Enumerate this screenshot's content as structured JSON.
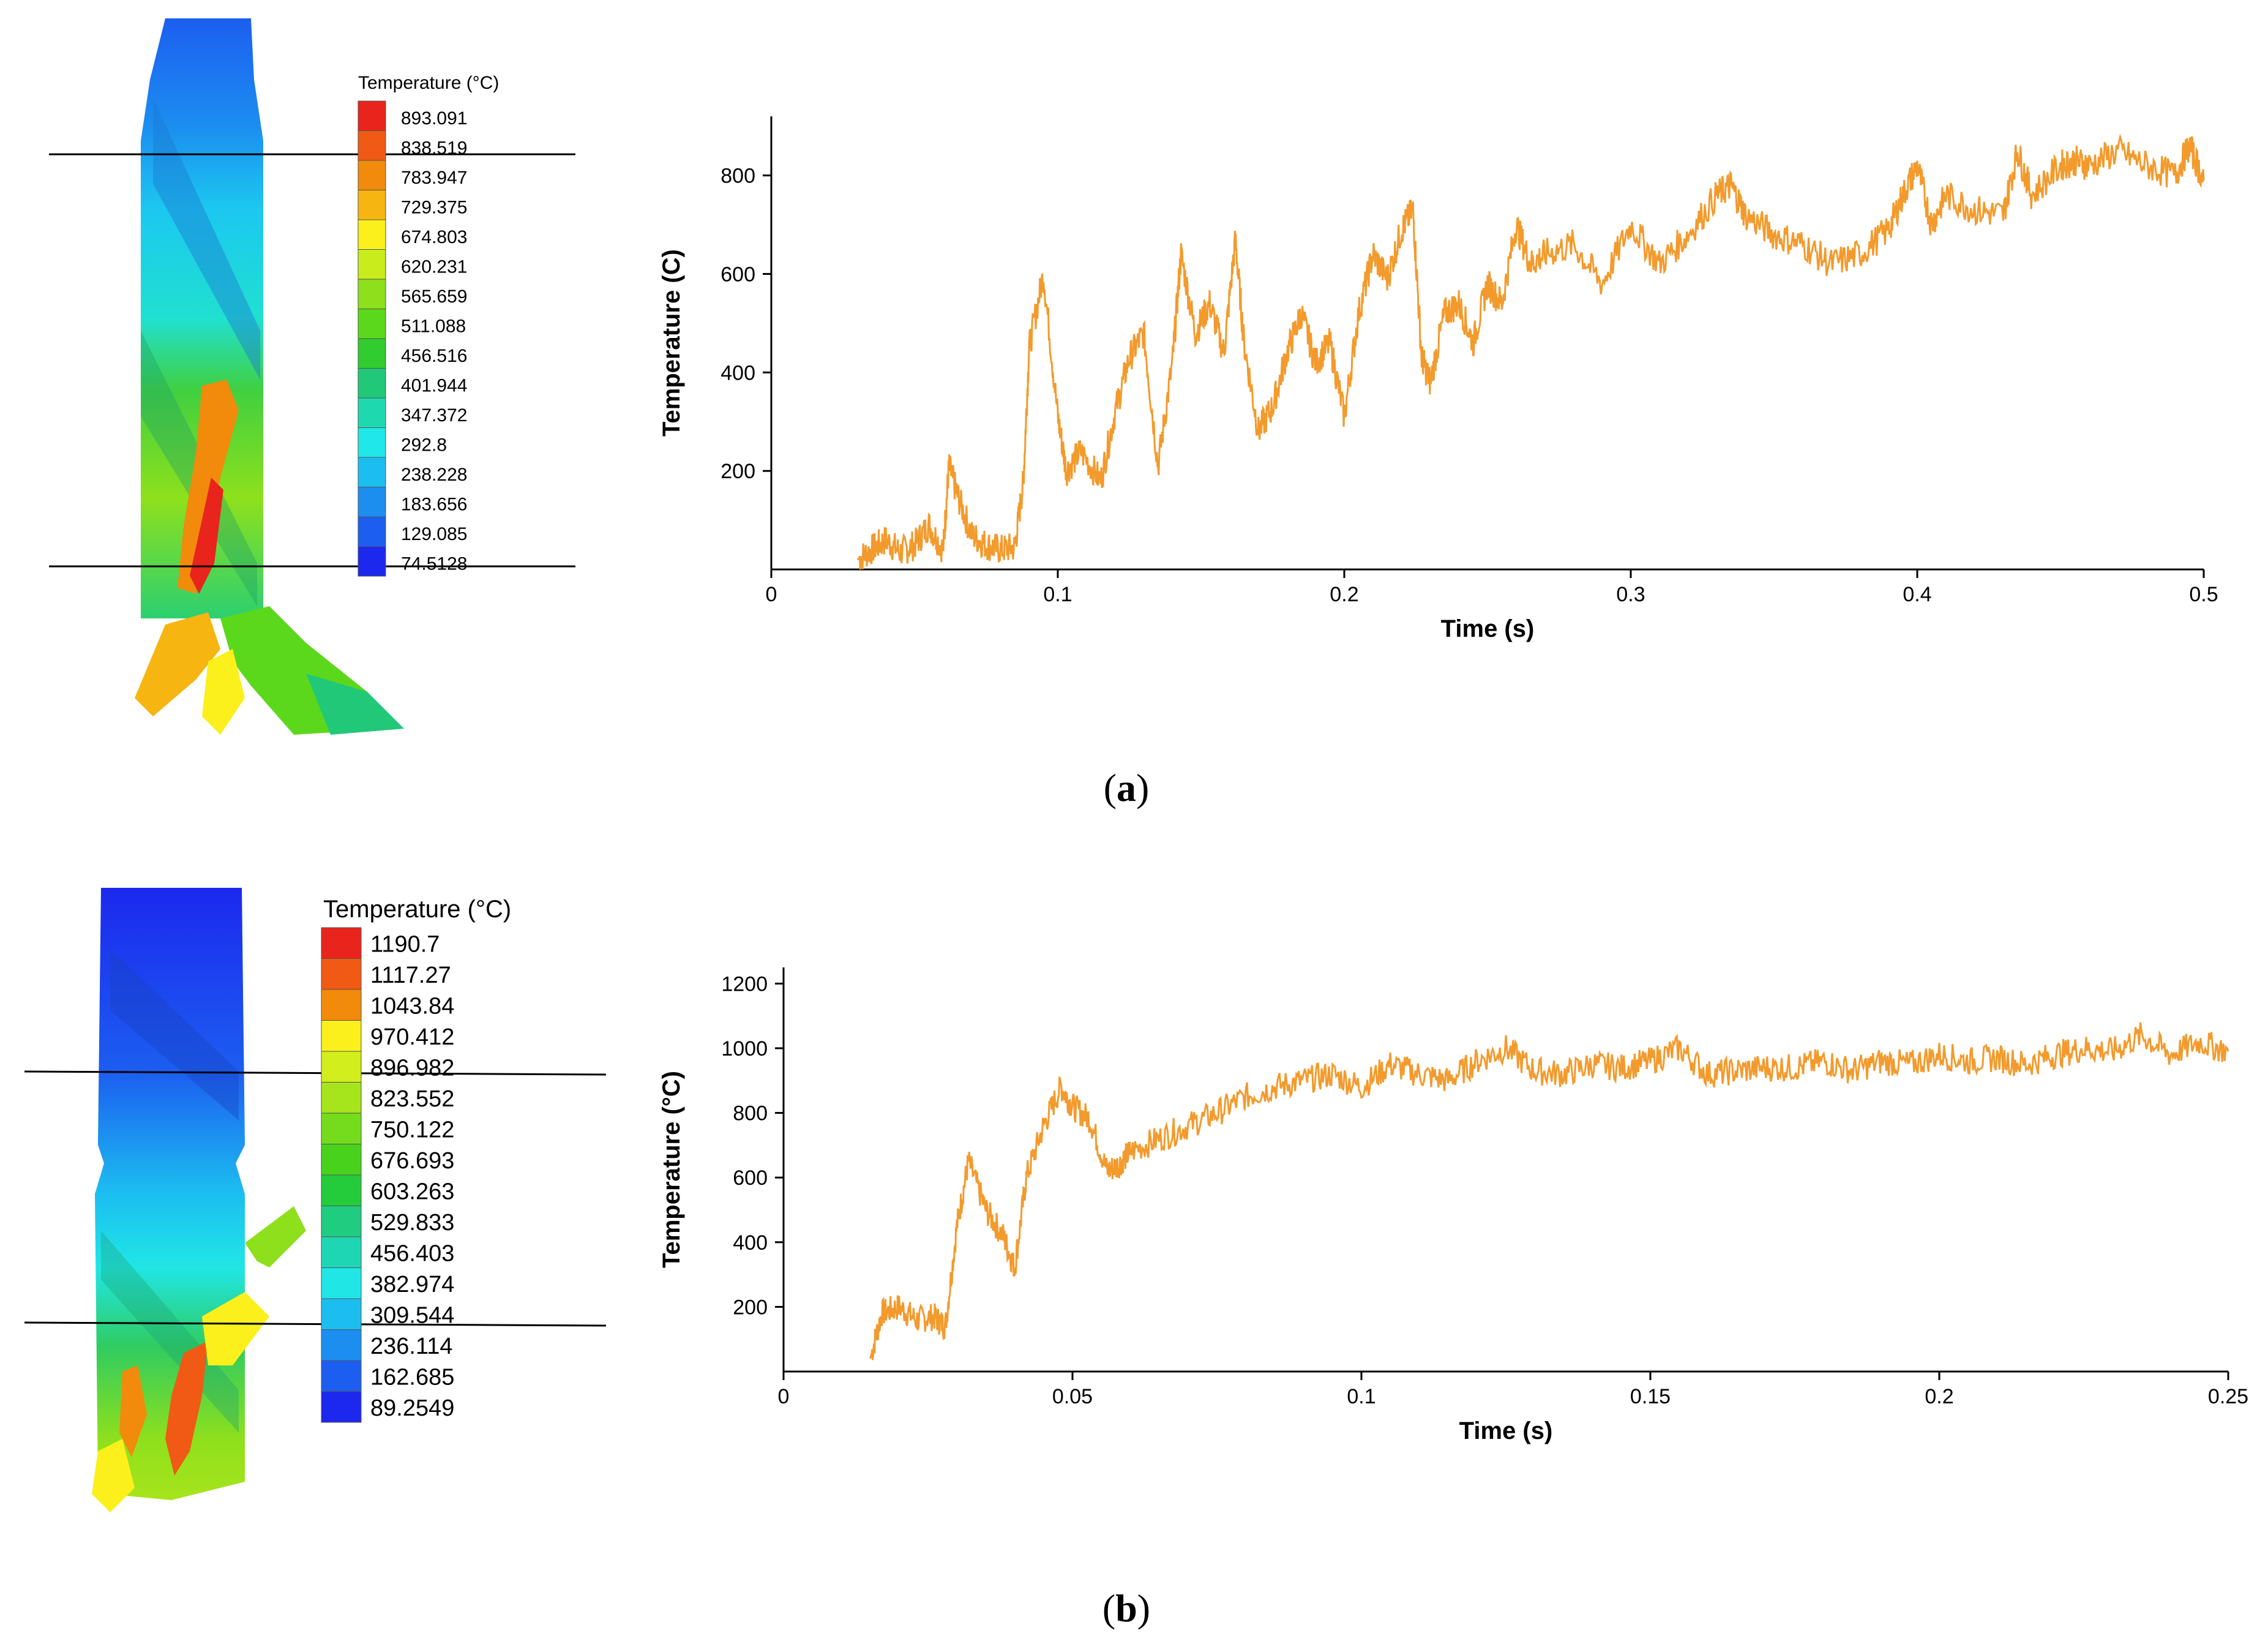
{
  "panels": [
    {
      "label_letter": "a",
      "legend": {
        "title": "Temperature (°C)",
        "values": [
          "893.091",
          "838.519",
          "783.947",
          "729.375",
          "674.803",
          "620.231",
          "565.659",
          "511.088",
          "456.516",
          "401.944",
          "347.372",
          "292.8",
          "238.228",
          "183.656",
          "129.085",
          "74.5128"
        ],
        "colors": [
          "#e8241c",
          "#f05a14",
          "#f28a0c",
          "#f6b510",
          "#fbf01c",
          "#c8ec1c",
          "#8ee01c",
          "#5cd81c",
          "#30cc30",
          "#20c878",
          "#1ed8b0",
          "#20e8e8",
          "#1cbef0",
          "#1c8ef0",
          "#1c5ef0",
          "#1c28ee"
        ]
      },
      "chart_data": {
        "type": "line",
        "xlabel": "Time (s)",
        "ylabel": "Temperature (C)",
        "xlim": [
          0,
          0.5
        ],
        "ylim": [
          0,
          920
        ],
        "xticks": [
          0,
          0.1,
          0.2,
          0.3,
          0.4,
          0.5
        ],
        "xtick_labels": [
          "0",
          "0.1",
          "0.2",
          "0.3",
          "0.4",
          "0.5"
        ],
        "yticks": [
          200,
          400,
          600,
          800
        ],
        "ytick_labels": [
          "200",
          "400",
          "600",
          "800"
        ],
        "color": "#f39a2c",
        "series": [
          {
            "name": "Temperature",
            "x": [
              0.03,
              0.035,
              0.04,
              0.045,
              0.05,
              0.055,
              0.06,
              0.062,
              0.065,
              0.07,
              0.075,
              0.08,
              0.085,
              0.088,
              0.09,
              0.095,
              0.1,
              0.103,
              0.108,
              0.115,
              0.12,
              0.125,
              0.13,
              0.135,
              0.14,
              0.143,
              0.148,
              0.153,
              0.158,
              0.162,
              0.165,
              0.17,
              0.175,
              0.18,
              0.185,
              0.19,
              0.195,
              0.2,
              0.205,
              0.21,
              0.215,
              0.22,
              0.224,
              0.227,
              0.23,
              0.235,
              0.24,
              0.245,
              0.25,
              0.255,
              0.26,
              0.265,
              0.27,
              0.28,
              0.29,
              0.3,
              0.31,
              0.32,
              0.33,
              0.335,
              0.34,
              0.35,
              0.36,
              0.37,
              0.38,
              0.39,
              0.395,
              0.4,
              0.405,
              0.41,
              0.42,
              0.43,
              0.435,
              0.44,
              0.45,
              0.455,
              0.46,
              0.47,
              0.48,
              0.49,
              0.495,
              0.5
            ],
            "y": [
              20,
              40,
              60,
              35,
              50,
              90,
              40,
              210,
              150,
              70,
              50,
              40,
              45,
              180,
              450,
              600,
              310,
              200,
              240,
              180,
              320,
              430,
              480,
              210,
              420,
              640,
              480,
              540,
              440,
              670,
              460,
              280,
              330,
              440,
              520,
              420,
              460,
              310,
              520,
              640,
              590,
              690,
              730,
              430,
              380,
              520,
              540,
              460,
              580,
              540,
              700,
              620,
              640,
              660,
              580,
              700,
              620,
              680,
              760,
              780,
              720,
              680,
              660,
              620,
              640,
              690,
              760,
              820,
              700,
              760,
              730,
              720,
              850,
              760,
              820,
              830,
              820,
              850,
              820,
              800,
              860,
              790
            ]
          }
        ]
      }
    },
    {
      "label_letter": "b",
      "legend": {
        "title": "Temperature (°C)",
        "values": [
          "1190.7",
          "1117.27",
          "1043.84",
          "970.412",
          "896.982",
          "823.552",
          "750.122",
          "676.693",
          "603.263",
          "529.833",
          "456.403",
          "382.974",
          "309.544",
          "236.114",
          "162.685",
          "89.2549"
        ],
        "colors": [
          "#e8241c",
          "#f05a14",
          "#f28a0c",
          "#fbf01c",
          "#d2ee1c",
          "#a6e41c",
          "#74dc1c",
          "#48d21c",
          "#24cc3c",
          "#20cc80",
          "#1ed6b4",
          "#20e6e6",
          "#1cbef0",
          "#1c8ef0",
          "#1c5ef0",
          "#1c28ee"
        ]
      },
      "chart_data": {
        "type": "line",
        "xlabel": "Time (s)",
        "ylabel": "Temperature (°C)",
        "xlim": [
          0,
          0.25
        ],
        "ylim": [
          0,
          1250
        ],
        "xticks": [
          0,
          0.05,
          0.1,
          0.15,
          0.2,
          0.25
        ],
        "xtick_labels": [
          "0",
          "0.05",
          "0.1",
          "0.15",
          "0.2",
          "0.25"
        ],
        "yticks": [
          200,
          400,
          600,
          800,
          1000,
          1200
        ],
        "ytick_labels": [
          "200",
          "400",
          "600",
          "800",
          "1000",
          "1200"
        ],
        "color": "#f39a2c",
        "series": [
          {
            "name": "Temperature",
            "x": [
              0.015,
              0.017,
              0.02,
              0.023,
              0.026,
              0.028,
              0.03,
              0.032,
              0.035,
              0.038,
              0.04,
              0.042,
              0.045,
              0.048,
              0.05,
              0.053,
              0.056,
              0.058,
              0.06,
              0.065,
              0.07,
              0.075,
              0.08,
              0.085,
              0.09,
              0.095,
              0.1,
              0.105,
              0.11,
              0.115,
              0.12,
              0.125,
              0.13,
              0.135,
              0.14,
              0.145,
              0.15,
              0.155,
              0.16,
              0.165,
              0.17,
              0.175,
              0.18,
              0.185,
              0.19,
              0.195,
              0.2,
              0.205,
              0.21,
              0.215,
              0.22,
              0.225,
              0.23,
              0.235,
              0.24,
              0.245,
              0.25
            ],
            "y": [
              40,
              180,
              200,
              160,
              170,
              140,
              450,
              650,
              500,
              420,
              320,
              600,
              760,
              880,
              820,
              780,
              620,
              640,
              680,
              720,
              760,
              800,
              850,
              880,
              900,
              920,
              880,
              950,
              920,
              900,
              960,
              1000,
              930,
              920,
              950,
              940,
              960,
              1000,
              920,
              930,
              940,
              940,
              960,
              930,
              960,
              950,
              980,
              960,
              970,
              950,
              980,
              1000,
              990,
              1040,
              980,
              1020,
              990
            ]
          }
        ]
      }
    }
  ]
}
